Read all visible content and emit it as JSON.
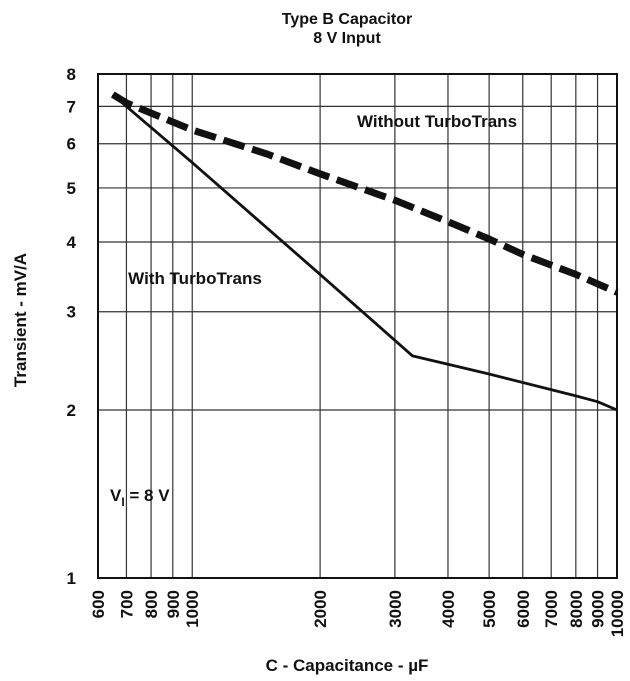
{
  "chart_data": {
    "type": "line",
    "title": "Type B Capacitor",
    "subtitle": "8 V Input",
    "xlabel": "C - Capacitance - µF",
    "ylabel": "Transient - mV/A",
    "x_scale": "log",
    "y_scale": "log",
    "xlim": [
      600,
      10000
    ],
    "ylim": [
      1,
      8
    ],
    "x_ticks": [
      600,
      700,
      800,
      900,
      1000,
      2000,
      3000,
      4000,
      5000,
      6000,
      7000,
      8000,
      9000,
      10000
    ],
    "x_tick_labels": [
      "600",
      "700",
      "800",
      "900",
      "1000",
      "2000",
      "3000",
      "4000",
      "5000",
      "6000",
      "7000",
      "8000",
      "9000",
      "10000"
    ],
    "y_ticks": [
      1,
      2,
      3,
      4,
      5,
      6,
      7,
      8
    ],
    "y_tick_labels": [
      "1",
      "2",
      "3",
      "4",
      "5",
      "6",
      "7",
      "8"
    ],
    "grid": true,
    "series": [
      {
        "name": "Without TurboTrans",
        "style": "dashed",
        "color": "#111111",
        "x": [
          650,
          700,
          1000,
          1500,
          2000,
          3000,
          4000,
          5000,
          6000,
          8000,
          10000
        ],
        "y": [
          7.35,
          7.1,
          6.35,
          5.75,
          5.3,
          4.75,
          4.35,
          4.05,
          3.8,
          3.5,
          3.25
        ]
      },
      {
        "name": "With TurboTrans",
        "style": "solid",
        "color": "#111111",
        "x": [
          650,
          700,
          1000,
          2000,
          3300,
          5000,
          8000,
          9000,
          10000
        ],
        "y": [
          7.35,
          7.0,
          5.55,
          3.5,
          2.5,
          2.32,
          2.12,
          2.07,
          2.0
        ]
      }
    ],
    "annotations": [
      {
        "text_main": "V",
        "text_sub": "I",
        "text_rest": " = 8 V"
      }
    ]
  }
}
